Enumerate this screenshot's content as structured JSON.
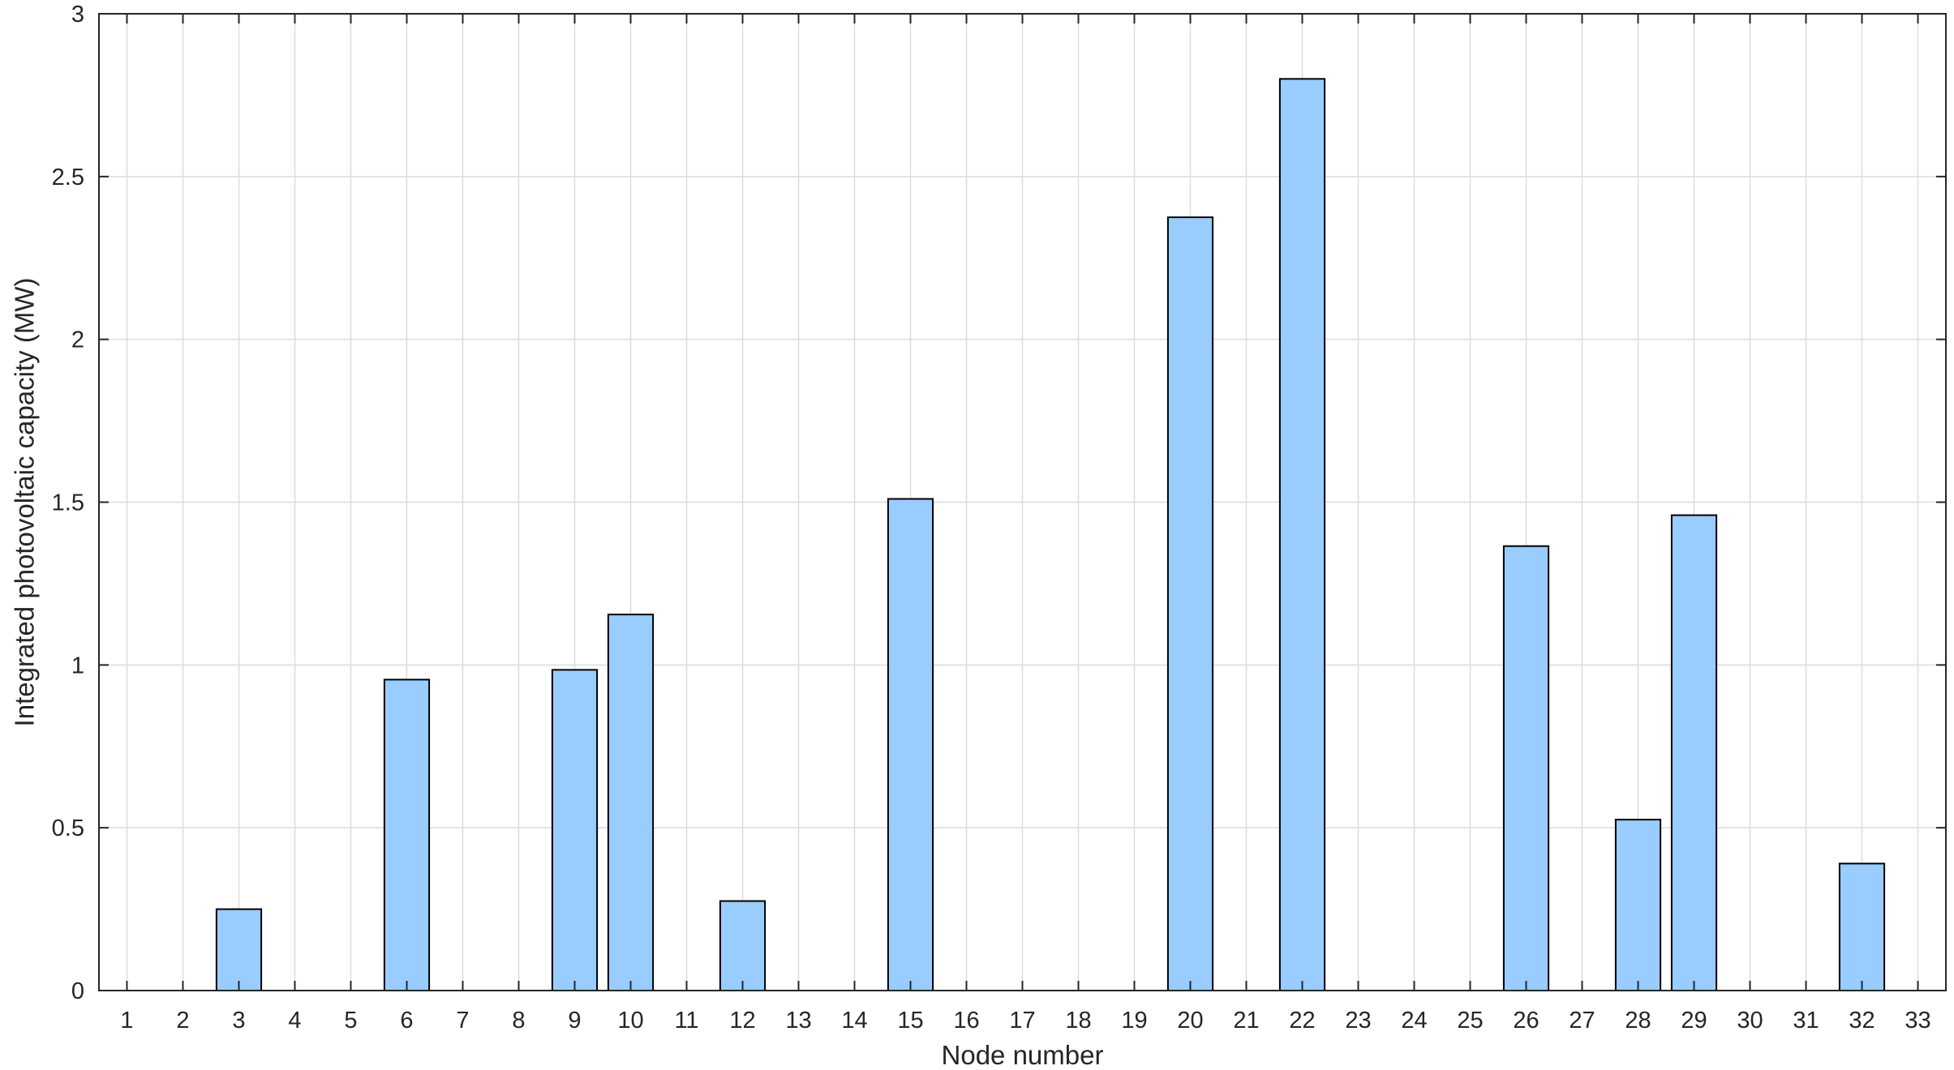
{
  "chart_data": {
    "type": "bar",
    "title": "",
    "xlabel": "Node number",
    "ylabel": "Integrated photovoltaic capacity (MW)",
    "categories": [
      "1",
      "2",
      "3",
      "4",
      "5",
      "6",
      "7",
      "8",
      "9",
      "10",
      "11",
      "12",
      "13",
      "14",
      "15",
      "16",
      "17",
      "18",
      "19",
      "20",
      "21",
      "22",
      "23",
      "24",
      "25",
      "26",
      "27",
      "28",
      "29",
      "30",
      "31",
      "32",
      "33"
    ],
    "values": [
      0,
      0,
      0.25,
      0,
      0,
      0.955,
      0,
      0,
      0.985,
      1.155,
      0,
      0.275,
      0,
      0,
      1.51,
      0,
      0,
      0,
      0,
      2.375,
      0,
      2.8,
      0,
      0,
      0,
      1.365,
      0,
      0.525,
      1.46,
      0,
      0,
      0.39,
      0
    ],
    "ylim": [
      0,
      3
    ],
    "yticks": [
      "0",
      "0.5",
      "1",
      "1.5",
      "2",
      "2.5",
      "3"
    ],
    "grid": true,
    "colors": {
      "bar_fill": "#99ccff",
      "bar_edge": "#000000",
      "grid": "#dcdcdc",
      "axis": "#262626"
    }
  }
}
